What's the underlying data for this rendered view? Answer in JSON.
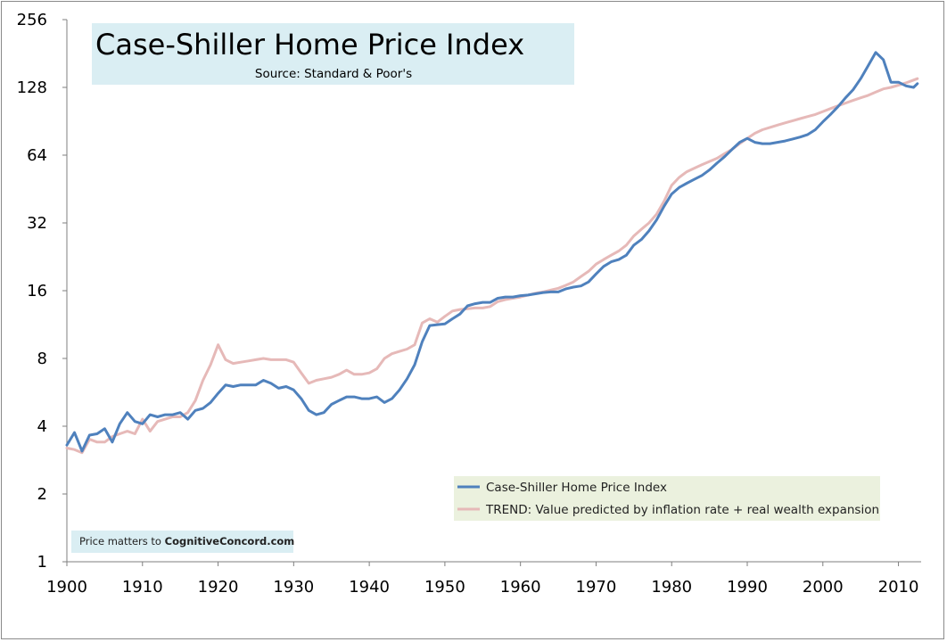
{
  "chart_data": {
    "type": "line",
    "title": "Case-Shiller Home Price Index",
    "subtitle": "Source: Standard & Poor's",
    "y_scale": "log2",
    "ylim": [
      1,
      256
    ],
    "xlim": [
      1900,
      2013
    ],
    "x_ticks": [
      "1900",
      "1910",
      "1920",
      "1930",
      "1940",
      "1950",
      "1960",
      "1970",
      "1980",
      "1990",
      "2000",
      "2010"
    ],
    "y_ticks": [
      "1",
      "2",
      "4",
      "8",
      "16",
      "32",
      "64",
      "128",
      "256"
    ],
    "grid": false,
    "legend_position": "bottom-right",
    "series": [
      {
        "name": "Case-Shiller Home Price Index",
        "color": "#4f81bd",
        "x": [
          1900,
          1901,
          1902,
          1903,
          1904,
          1905,
          1906,
          1907,
          1908,
          1909,
          1910,
          1911,
          1912,
          1913,
          1914,
          1915,
          1916,
          1917,
          1918,
          1919,
          1920,
          1921,
          1922,
          1923,
          1924,
          1925,
          1926,
          1927,
          1928,
          1929,
          1930,
          1931,
          1932,
          1933,
          1934,
          1935,
          1936,
          1937,
          1938,
          1939,
          1940,
          1941,
          1942,
          1943,
          1944,
          1945,
          1946,
          1947,
          1948,
          1949,
          1950,
          1951,
          1952,
          1953,
          1954,
          1955,
          1956,
          1957,
          1958,
          1959,
          1960,
          1961,
          1962,
          1963,
          1964,
          1965,
          1966,
          1967,
          1968,
          1969,
          1970,
          1971,
          1972,
          1973,
          1974,
          1975,
          1976,
          1977,
          1978,
          1979,
          1980,
          1981,
          1982,
          1983,
          1984,
          1985,
          1986,
          1987,
          1988,
          1989,
          1990,
          1991,
          1992,
          1993,
          1994,
          1995,
          1996,
          1997,
          1998,
          1999,
          2000,
          2001,
          2002,
          2003,
          2004,
          2005,
          2006,
          2007,
          2008,
          2009,
          2010,
          2011,
          2012,
          2012.5
        ],
        "values": [
          3.3,
          3.75,
          3.1,
          3.65,
          3.7,
          3.9,
          3.4,
          4.1,
          4.6,
          4.2,
          4.1,
          4.5,
          4.4,
          4.5,
          4.5,
          4.6,
          4.3,
          4.7,
          4.8,
          5.1,
          5.6,
          6.1,
          6.0,
          6.1,
          6.1,
          6.1,
          6.4,
          6.2,
          5.9,
          6.0,
          5.8,
          5.3,
          4.7,
          4.5,
          4.6,
          5.0,
          5.2,
          5.4,
          5.4,
          5.3,
          5.3,
          5.4,
          5.1,
          5.3,
          5.8,
          6.5,
          7.5,
          9.5,
          11.2,
          11.3,
          11.4,
          12.0,
          12.6,
          13.7,
          14.0,
          14.2,
          14.2,
          14.8,
          15.0,
          15.0,
          15.2,
          15.3,
          15.5,
          15.7,
          15.8,
          15.8,
          16.3,
          16.6,
          16.8,
          17.5,
          19.0,
          20.5,
          21.5,
          22.0,
          23.0,
          25.5,
          27.0,
          29.5,
          33.0,
          38.0,
          43.0,
          46.0,
          48.0,
          50.0,
          52.0,
          55.0,
          59.0,
          63.0,
          68.0,
          73.0,
          76.0,
          73.0,
          72.0,
          72.0,
          73.0,
          74.0,
          75.5,
          77.0,
          79.0,
          83.0,
          90.0,
          97.0,
          105.0,
          115.0,
          125.0,
          140.0,
          160.0,
          183.0,
          170.0,
          135.0,
          135.0,
          130.0,
          128.0,
          133.0
        ]
      },
      {
        "name": "TREND: Value predicted by inflation rate + real wealth expansion",
        "color": "#e6b9b8",
        "x": [
          1900,
          1901,
          1902,
          1903,
          1904,
          1905,
          1906,
          1907,
          1908,
          1909,
          1910,
          1911,
          1912,
          1913,
          1914,
          1915,
          1916,
          1917,
          1918,
          1919,
          1920,
          1921,
          1922,
          1923,
          1924,
          1925,
          1926,
          1927,
          1928,
          1929,
          1930,
          1931,
          1932,
          1933,
          1934,
          1935,
          1936,
          1937,
          1938,
          1939,
          1940,
          1941,
          1942,
          1943,
          1944,
          1945,
          1946,
          1947,
          1948,
          1949,
          1950,
          1951,
          1952,
          1953,
          1954,
          1955,
          1956,
          1957,
          1958,
          1959,
          1960,
          1961,
          1962,
          1963,
          1964,
          1965,
          1966,
          1967,
          1968,
          1969,
          1970,
          1971,
          1972,
          1973,
          1974,
          1975,
          1976,
          1977,
          1978,
          1979,
          1980,
          1981,
          1982,
          1983,
          1984,
          1985,
          1986,
          1987,
          1988,
          1989,
          1990,
          1991,
          1992,
          1993,
          1994,
          1995,
          1996,
          1997,
          1998,
          1999,
          2000,
          2001,
          2002,
          2003,
          2004,
          2005,
          2006,
          2007,
          2008,
          2009,
          2010,
          2011,
          2012,
          2012.5
        ],
        "values": [
          3.2,
          3.15,
          3.05,
          3.5,
          3.4,
          3.4,
          3.6,
          3.7,
          3.8,
          3.7,
          4.3,
          3.8,
          4.2,
          4.3,
          4.4,
          4.4,
          4.6,
          5.2,
          6.4,
          7.5,
          9.2,
          7.9,
          7.6,
          7.7,
          7.8,
          7.9,
          8.0,
          7.9,
          7.9,
          7.9,
          7.7,
          6.9,
          6.2,
          6.4,
          6.5,
          6.6,
          6.8,
          7.1,
          6.8,
          6.8,
          6.9,
          7.2,
          8.0,
          8.4,
          8.6,
          8.8,
          9.2,
          11.5,
          12.0,
          11.6,
          12.3,
          13.0,
          13.2,
          13.3,
          13.4,
          13.4,
          13.6,
          14.3,
          14.6,
          14.8,
          15.0,
          15.3,
          15.6,
          15.8,
          16.1,
          16.4,
          16.9,
          17.5,
          18.5,
          19.5,
          21.0,
          22.0,
          23.0,
          24.0,
          25.5,
          28.0,
          30.0,
          32.0,
          35.0,
          40.0,
          47.0,
          51.0,
          54.0,
          56.0,
          58.0,
          60.0,
          62.0,
          65.0,
          68.0,
          72.0,
          76.0,
          80.0,
          83.0,
          85.0,
          87.0,
          89.0,
          91.0,
          93.0,
          95.0,
          97.0,
          100.0,
          103.0,
          106.0,
          109.0,
          112.0,
          115.0,
          118.0,
          122.0,
          126.0,
          128.0,
          131.0,
          134.0,
          138.0,
          140.0
        ]
      }
    ],
    "annotations": {
      "credit_prefix": "Price matters to ",
      "credit_site": "CognitiveConcord.com"
    }
  }
}
